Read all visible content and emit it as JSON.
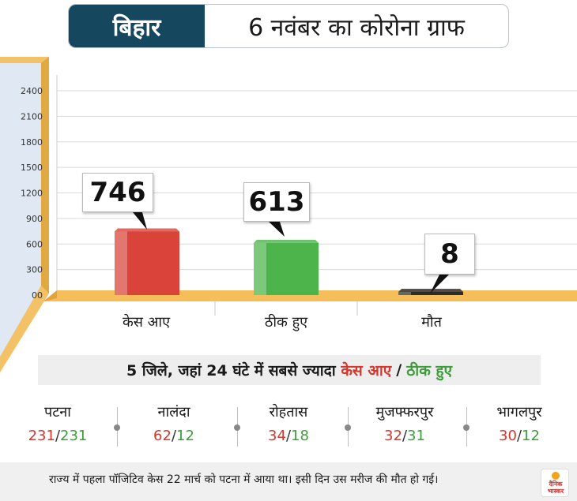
{
  "header": {
    "state": "बिहार",
    "title": "6 नवंबर का कोरोना ग्राफ"
  },
  "chart_data": {
    "type": "bar",
    "categories": [
      "केस आए",
      "ठीक हुए",
      "मौत"
    ],
    "values": [
      746,
      613,
      8
    ],
    "value_labels": [
      "746",
      "613",
      "8"
    ],
    "colors": [
      "#d9433a",
      "#4cb44a",
      "#2b2b2b"
    ],
    "ylim": [
      0,
      2400
    ],
    "yticks": [
      0,
      300,
      600,
      900,
      1200,
      1500,
      1800,
      2100,
      2400
    ],
    "ytick_labels": [
      "00",
      "300",
      "600",
      "900",
      "1200",
      "1500",
      "1800",
      "2100",
      "2400"
    ],
    "grid": true
  },
  "districts": {
    "title_prefix": "5 जिले, जहां 24 घंटे में सबसे ज्यादा",
    "title_cases": "केस आए",
    "title_sep": "/",
    "title_recovered": "ठीक हुए",
    "items": [
      {
        "name": "पटना",
        "cases": "231",
        "sep": "/",
        "recovered": "231"
      },
      {
        "name": "नालंदा",
        "cases": "62",
        "sep": "/",
        "recovered": "12"
      },
      {
        "name": "रोहतास",
        "cases": "34",
        "sep": "/",
        "recovered": "18"
      },
      {
        "name": "मुजफ्फरपुर",
        "cases": "32",
        "sep": "/",
        "recovered": "31"
      },
      {
        "name": "भागलपुर",
        "cases": "30",
        "sep": "/",
        "recovered": "12"
      }
    ]
  },
  "footer": {
    "text": "राज्य में पहला पॉजिटिव केस 22 मार्च को पटना में आया था। इसी दिन उस मरीज की मौत हो गई।",
    "logo_line1": "दैनिक",
    "logo_line2": "भास्कर"
  }
}
